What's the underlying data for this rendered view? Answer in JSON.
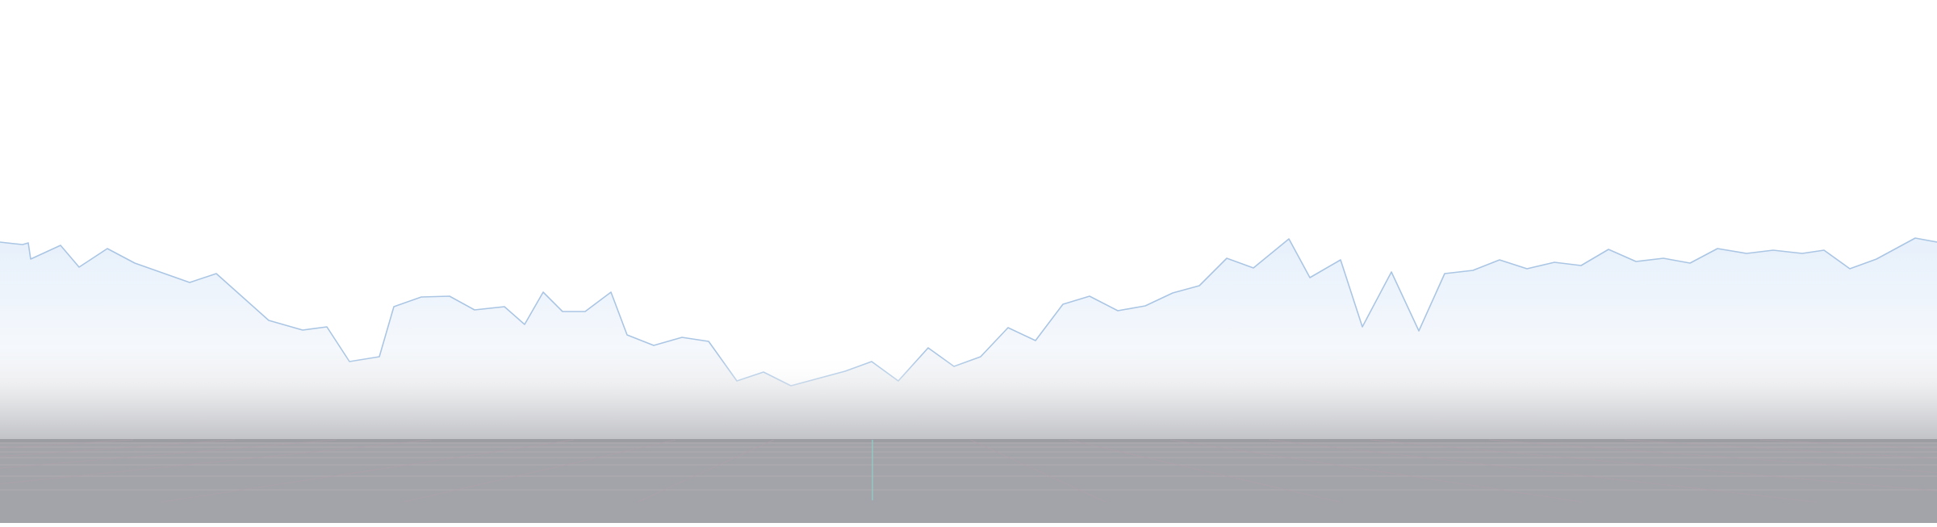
{
  "scene": {
    "sky_color": "#ffffff",
    "mountain_fill_top": "#e6f0fb",
    "mountain_fill_mid": "#f5f8fc",
    "mountain_stroke": "#aac6e4",
    "haze_color": "#c2c3c7",
    "floor_color": "#a3a4a9",
    "floor_horizon_color": "#9c9da2",
    "grid_line_color": "#b9b1b7",
    "grid_line_accent": "#b2a1ab",
    "center_axis_color": "#8fd1c9"
  }
}
